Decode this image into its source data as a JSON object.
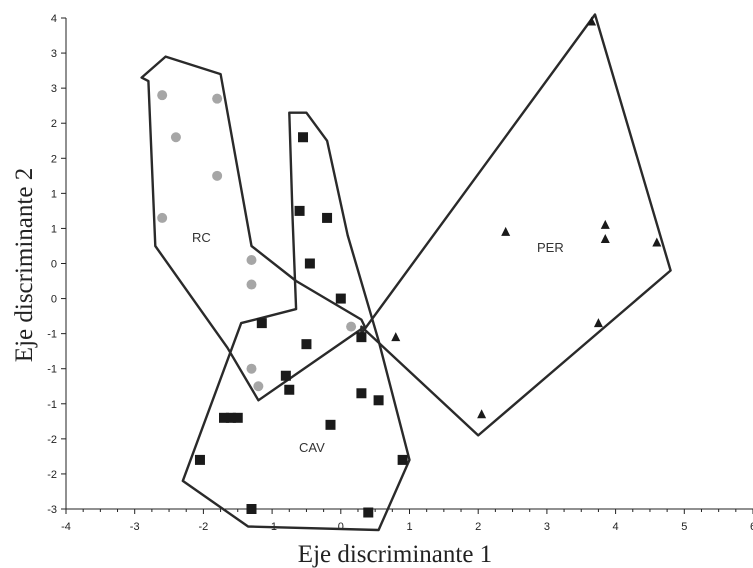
{
  "chart_data": {
    "type": "scatter",
    "xlabel": "Eje discriminante 1",
    "ylabel": "Eje discriminante 2",
    "xlim": [
      -4,
      6
    ],
    "ylim": [
      -3,
      4
    ],
    "x_ticks": [
      -4,
      -3,
      -2,
      -1,
      0,
      1,
      2,
      3,
      4,
      5,
      6
    ],
    "y_ticks": [
      4,
      3.5,
      3,
      2.5,
      2,
      1.5,
      1,
      0.5,
      0,
      -0.5,
      -1,
      -1.5,
      -2,
      -2.5,
      -3
    ],
    "x_tick_labels": [
      "-4",
      "-3",
      "-2",
      "-1",
      "0",
      "1",
      "2",
      "3",
      "4",
      "5",
      "6"
    ],
    "y_tick_labels": [
      "4",
      "3",
      "3",
      "2",
      "2",
      "1",
      "1",
      "0",
      "0",
      "-1",
      "-1",
      "-1",
      "-2",
      "-2",
      "-3"
    ],
    "grid": false,
    "legend": "none",
    "series": [
      {
        "name": "RC",
        "marker": "circle",
        "color": "#a6a6a6",
        "points": [
          [
            -2.6,
            2.9
          ],
          [
            -1.8,
            2.85
          ],
          [
            -2.4,
            2.3
          ],
          [
            -1.8,
            1.75
          ],
          [
            -2.6,
            1.15
          ],
          [
            -1.3,
            0.55
          ],
          [
            -1.3,
            0.2
          ],
          [
            -1.3,
            -1.0
          ],
          [
            -1.2,
            -1.25
          ],
          [
            0.15,
            -0.4
          ]
        ],
        "hull": [
          [
            -2.9,
            3.15
          ],
          [
            -2.55,
            3.45
          ],
          [
            -1.75,
            3.2
          ],
          [
            -1.3,
            0.75
          ],
          [
            -0.65,
            0.25
          ],
          [
            0.3,
            -0.3
          ],
          [
            0.35,
            -0.4
          ],
          [
            -1.2,
            -1.45
          ],
          [
            -1.65,
            -0.7
          ],
          [
            -2.7,
            0.75
          ],
          [
            -2.8,
            3.1
          ]
        ]
      },
      {
        "name": "CAV",
        "marker": "square",
        "color": "#1a1a1a",
        "points": [
          [
            -0.55,
            2.3
          ],
          [
            -0.6,
            1.25
          ],
          [
            -0.2,
            1.15
          ],
          [
            -0.45,
            0.5
          ],
          [
            0.0,
            0.0
          ],
          [
            -1.15,
            -0.35
          ],
          [
            0.3,
            -0.55
          ],
          [
            -0.5,
            -0.65
          ],
          [
            -0.8,
            -1.1
          ],
          [
            -0.75,
            -1.3
          ],
          [
            0.3,
            -1.35
          ],
          [
            0.55,
            -1.45
          ],
          [
            -1.7,
            -1.7
          ],
          [
            -1.6,
            -1.7
          ],
          [
            -1.5,
            -1.7
          ],
          [
            -0.15,
            -1.8
          ],
          [
            -2.05,
            -2.3
          ],
          [
            0.9,
            -2.3
          ],
          [
            -1.3,
            -3.0
          ],
          [
            0.4,
            -3.05
          ]
        ],
        "hull": [
          [
            -0.75,
            2.65
          ],
          [
            -0.5,
            2.65
          ],
          [
            -0.2,
            2.25
          ],
          [
            0.1,
            0.9
          ],
          [
            0.55,
            -0.6
          ],
          [
            1.0,
            -2.3
          ],
          [
            0.55,
            -3.3
          ],
          [
            -1.35,
            -3.25
          ],
          [
            -2.3,
            -2.6
          ],
          [
            -1.45,
            -0.35
          ],
          [
            -0.65,
            -0.15
          ],
          [
            -0.7,
            1.1
          ]
        ]
      },
      {
        "name": "PER",
        "marker": "triangle",
        "color": "#1a1a1a",
        "points": [
          [
            3.65,
            3.95
          ],
          [
            2.4,
            0.95
          ],
          [
            3.85,
            1.05
          ],
          [
            3.85,
            0.85
          ],
          [
            4.6,
            0.8
          ],
          [
            0.8,
            -0.55
          ],
          [
            3.75,
            -0.35
          ],
          [
            2.05,
            -1.65
          ]
        ],
        "hull": [
          [
            3.7,
            4.05
          ],
          [
            4.8,
            0.4
          ],
          [
            2.0,
            -1.95
          ],
          [
            0.3,
            -0.4
          ],
          [
            0.3,
            -0.5
          ]
        ]
      }
    ],
    "annotations": [
      "RC",
      "CAV",
      "PER"
    ]
  }
}
